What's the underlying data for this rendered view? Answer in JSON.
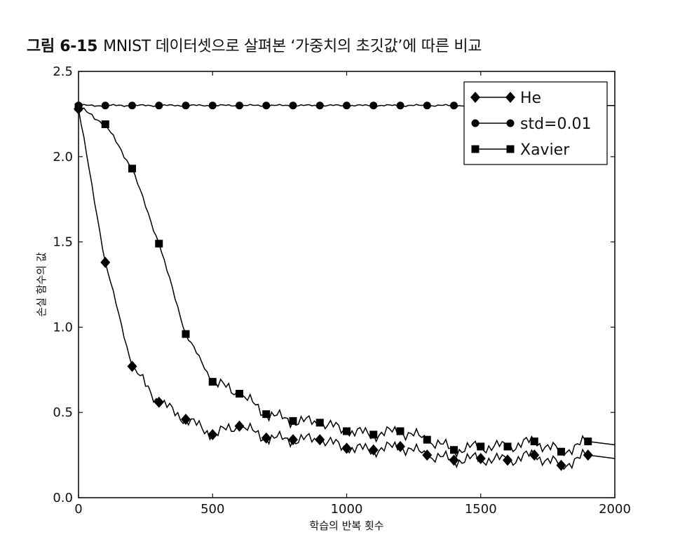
{
  "figure": {
    "number": "그림 6-15",
    "caption": "MNIST 데이터셋으로 살펴본 ‘가중치의 초깃값’에 따른 비교"
  },
  "chart_data": {
    "type": "line",
    "xlabel": "학습의 반복 횟수",
    "ylabel": "손실 함수의 값",
    "xlim": [
      0,
      2000
    ],
    "ylim": [
      0,
      2.5
    ],
    "xticks": [
      0,
      500,
      1000,
      1500,
      2000
    ],
    "yticks": [
      0.0,
      0.5,
      1.0,
      1.5,
      2.0,
      2.5
    ],
    "xtick_labels": [
      "0",
      "500",
      "1000",
      "1500",
      "2000"
    ],
    "ytick_labels": [
      "0.0",
      "0.5",
      "1.0",
      "1.5",
      "2.0",
      "2.5"
    ],
    "grid": false,
    "legend_position": "top-right",
    "series": [
      {
        "name": "He",
        "marker": "diamond",
        "color": "#000000",
        "x": [
          0,
          100,
          200,
          300,
          400,
          500,
          600,
          700,
          800,
          900,
          1000,
          1100,
          1200,
          1300,
          1400,
          1500,
          1600,
          1700,
          1800,
          1900
        ],
        "y": [
          2.28,
          1.38,
          0.77,
          0.56,
          0.46,
          0.37,
          0.42,
          0.35,
          0.34,
          0.34,
          0.29,
          0.28,
          0.3,
          0.25,
          0.22,
          0.23,
          0.22,
          0.25,
          0.19,
          0.25
        ]
      },
      {
        "name": "std=0.01",
        "marker": "circle",
        "color": "#000000",
        "x": [
          0,
          100,
          200,
          300,
          400,
          500,
          600,
          700,
          800,
          900,
          1000,
          1100,
          1200,
          1300,
          1400,
          1500,
          1600,
          1700,
          1800,
          1900
        ],
        "y": [
          2.3,
          2.3,
          2.3,
          2.3,
          2.3,
          2.3,
          2.3,
          2.3,
          2.3,
          2.3,
          2.3,
          2.3,
          2.3,
          2.3,
          2.3,
          2.3,
          2.3,
          2.3,
          2.3,
          2.3
        ]
      },
      {
        "name": "Xavier",
        "marker": "square",
        "color": "#000000",
        "x": [
          0,
          100,
          200,
          300,
          400,
          500,
          600,
          700,
          800,
          900,
          1000,
          1100,
          1200,
          1300,
          1400,
          1500,
          1600,
          1700,
          1800,
          1900
        ],
        "y": [
          2.29,
          2.19,
          1.93,
          1.49,
          0.96,
          0.68,
          0.61,
          0.49,
          0.45,
          0.44,
          0.39,
          0.37,
          0.39,
          0.34,
          0.28,
          0.3,
          0.3,
          0.33,
          0.27,
          0.33
        ]
      }
    ]
  }
}
